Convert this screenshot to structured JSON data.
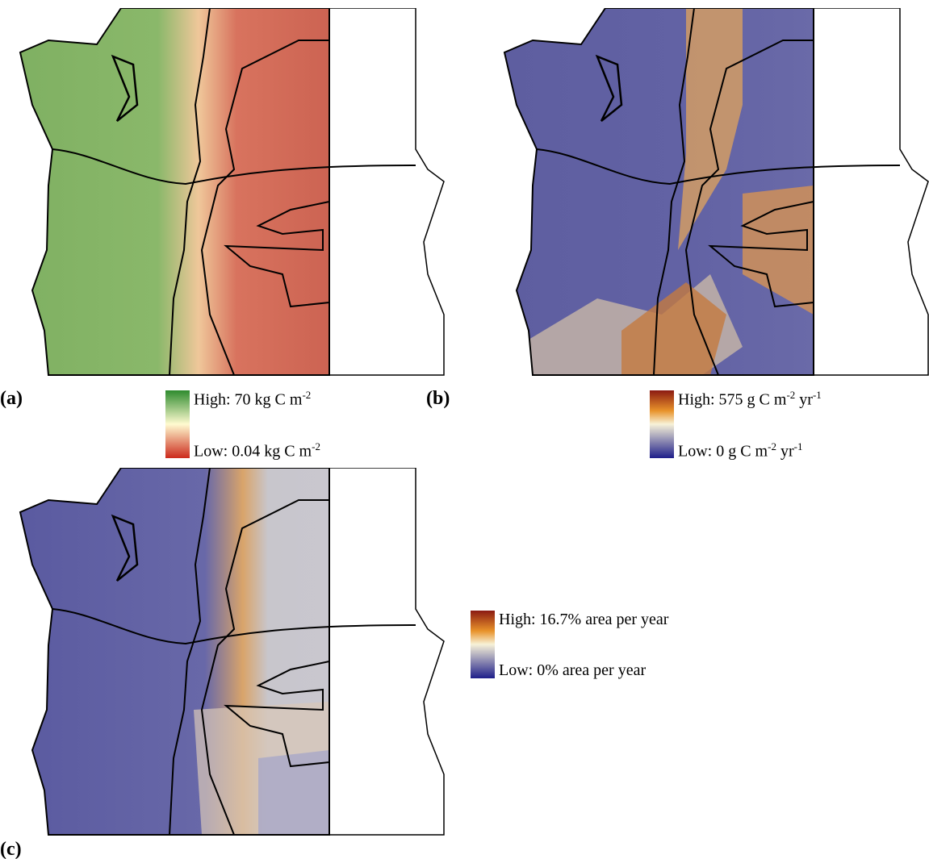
{
  "panels": [
    {
      "label": "(a)",
      "legend": {
        "high": [
          {
            "text": "High: 70 kg C m"
          },
          {
            "sup": "-2"
          }
        ],
        "low": [
          {
            "text": "Low: 0.04 kg C m"
          },
          {
            "sup": "-2"
          }
        ]
      }
    },
    {
      "label": "(b)",
      "legend": {
        "high": [
          {
            "text": "High: 575 g C m"
          },
          {
            "sup": "-2"
          },
          {
            "text": " yr"
          },
          {
            "sup": "-1"
          }
        ],
        "low": [
          {
            "text": "Low: 0 g C m"
          },
          {
            "sup": "-2"
          },
          {
            "text": " yr"
          },
          {
            "sup": "-1"
          }
        ]
      }
    },
    {
      "label": "(c)",
      "legend": {
        "high": [
          {
            "text": "High: 16.7% area per year"
          }
        ],
        "low": [
          {
            "text": "Low: 0% area per year"
          }
        ]
      }
    }
  ]
}
